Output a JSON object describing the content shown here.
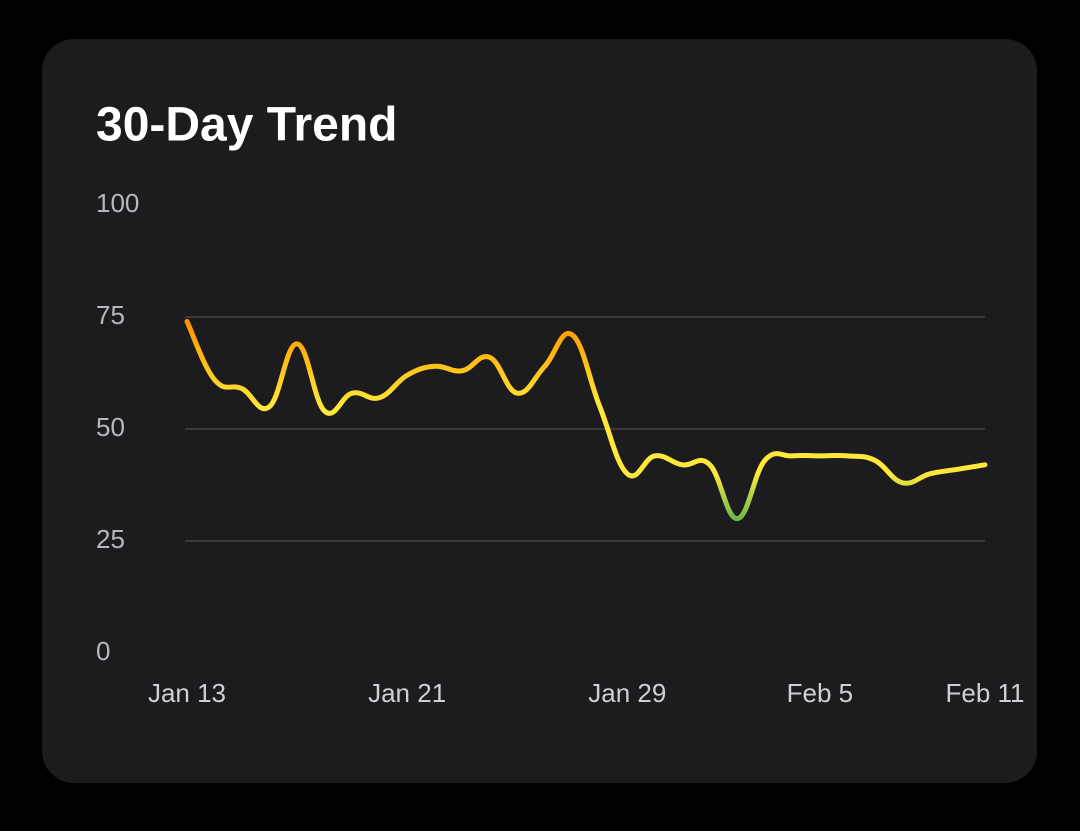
{
  "chart_data": {
    "type": "line",
    "title": "30-Day Trend",
    "categories": [
      "Jan 13",
      null,
      null,
      null,
      null,
      null,
      null,
      null,
      "Jan 21",
      null,
      null,
      null,
      null,
      null,
      null,
      null,
      "Jan 29",
      null,
      null,
      null,
      null,
      null,
      null,
      "Feb 5",
      null,
      null,
      null,
      null,
      null,
      "Feb 11"
    ],
    "values": [
      74,
      61,
      59,
      55,
      69,
      54,
      58,
      57,
      62,
      64,
      63,
      66,
      58,
      64,
      71,
      55,
      40,
      44,
      42,
      42,
      30,
      43,
      44,
      44,
      44,
      43,
      38,
      40,
      41,
      42
    ],
    "colors": [
      "#ff9500",
      "#ffc21a",
      "#ffe83a",
      "#ffe83a",
      "#4caf50"
    ],
    "ylim": [
      0,
      100
    ],
    "yticks": [
      0,
      25,
      50,
      75,
      100
    ],
    "grid": true
  }
}
